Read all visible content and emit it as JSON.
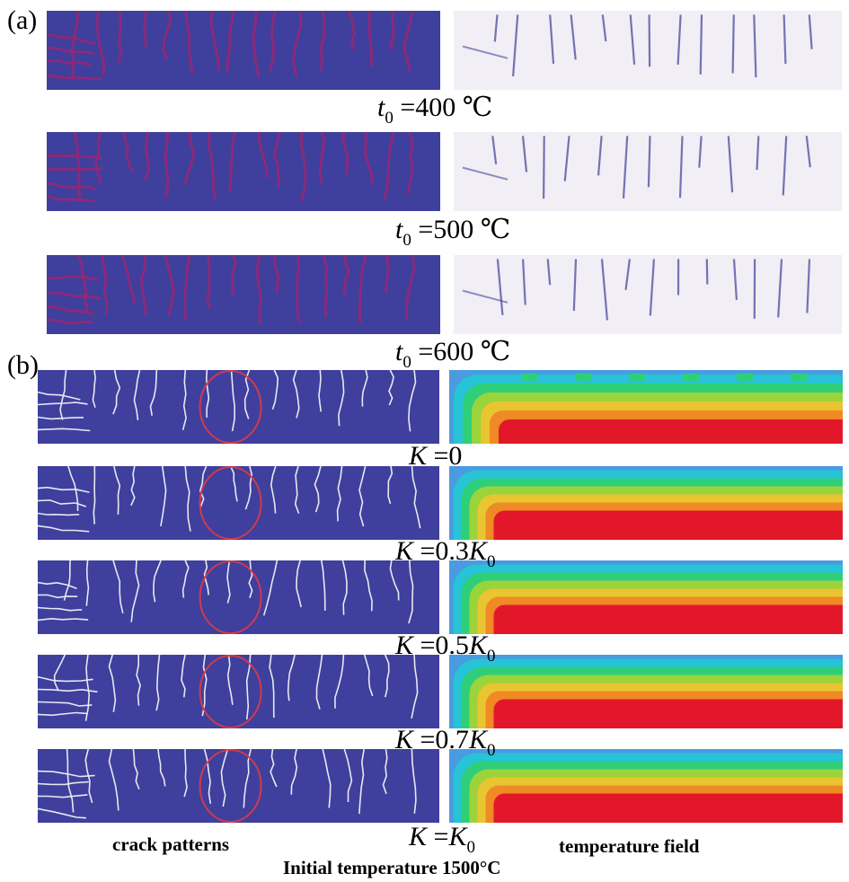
{
  "panel_a": {
    "label": "(a)",
    "rows": [
      {
        "caption_var": "t",
        "caption_sub": "0",
        "caption_rest": " =400 ℃"
      },
      {
        "caption_var": "t",
        "caption_sub": "0",
        "caption_rest": " =500 ℃"
      },
      {
        "caption_var": "t",
        "caption_sub": "0",
        "caption_rest": " =600 ℃"
      }
    ]
  },
  "panel_b": {
    "label": "(b)",
    "rows": [
      {
        "caption_pre": "K",
        "caption_mid": " =0",
        "caption_k": "",
        "caption_sub": ""
      },
      {
        "caption_pre": "K",
        "caption_mid": " =0.3",
        "caption_k": "K",
        "caption_sub": "0"
      },
      {
        "caption_pre": "K",
        "caption_mid": " =0.5",
        "caption_k": "K",
        "caption_sub": "0"
      },
      {
        "caption_pre": "K",
        "caption_mid": " =0.7",
        "caption_k": "K",
        "caption_sub": "0"
      },
      {
        "caption_pre": "K",
        "caption_mid": " =",
        "caption_k": "K",
        "caption_sub": "0"
      }
    ]
  },
  "footer": {
    "left_label": "crack patterns",
    "right_label": "temperature field",
    "bottom_label": "Initial temperature 1500°C"
  },
  "colors": {
    "crack_bg": "#3f3f9e",
    "crack_line_a": "#8a2a7a",
    "crack_line_b": "#e8e8f0",
    "photo_bg": "#f1eef6",
    "photo_crack": "#4a4a9a",
    "circle": "#d23a4a",
    "temp_bands": [
      "#4a9be0",
      "#27c3d6",
      "#2fcf7a",
      "#9bd43a",
      "#e8c531",
      "#ef8a24",
      "#e2182a"
    ]
  }
}
